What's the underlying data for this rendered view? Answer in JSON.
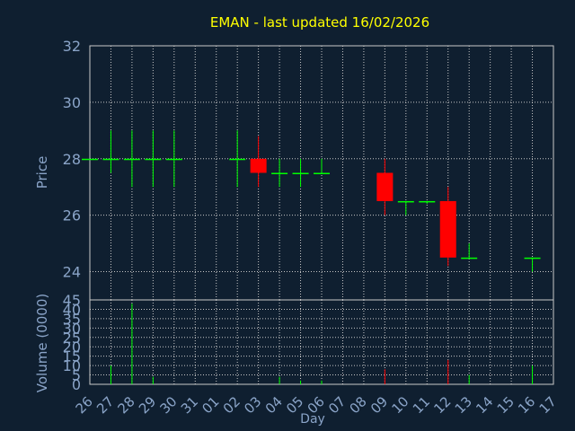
{
  "chart_data": [
    {
      "type": "candlestick",
      "title": "EMAN - last updated 16/02/2026",
      "ylabel": "Price",
      "ylim": [
        23,
        32
      ],
      "y_ticks": [
        "24",
        "26",
        "28",
        "30",
        "32"
      ],
      "grid": true,
      "colors": {
        "up": "#00ff00",
        "down": "#ff0000",
        "text": "#8aa4c8",
        "title": "#ffff00",
        "grid": "#c8c8c8"
      },
      "candles": [
        {
          "x": "26",
          "open": 28.0,
          "high": 28.0,
          "low": 28.0,
          "close": 28.0
        },
        {
          "x": "27",
          "open": 28.0,
          "high": 29.0,
          "low": 27.5,
          "close": 28.0
        },
        {
          "x": "28",
          "open": 28.0,
          "high": 29.0,
          "low": 27.0,
          "close": 28.0
        },
        {
          "x": "29",
          "open": 28.0,
          "high": 29.0,
          "low": 27.0,
          "close": 28.0
        },
        {
          "x": "30",
          "open": 28.0,
          "high": 29.0,
          "low": 27.0,
          "close": 28.0
        },
        {
          "x": "02",
          "open": 28.0,
          "high": 29.0,
          "low": 27.0,
          "close": 28.0
        },
        {
          "x": "03",
          "open": 28.0,
          "high": 28.8,
          "low": 27.0,
          "close": 27.5
        },
        {
          "x": "04",
          "open": 27.5,
          "high": 28.0,
          "low": 27.0,
          "close": 27.5
        },
        {
          "x": "05",
          "open": 27.5,
          "high": 28.0,
          "low": 27.0,
          "close": 27.5
        },
        {
          "x": "06",
          "open": 27.5,
          "high": 28.0,
          "low": 27.5,
          "close": 27.5
        },
        {
          "x": "09",
          "open": 27.5,
          "high": 28.0,
          "low": 26.0,
          "close": 26.5
        },
        {
          "x": "10",
          "open": 26.5,
          "high": 26.5,
          "low": 26.0,
          "close": 26.5
        },
        {
          "x": "11",
          "open": 26.5,
          "high": 26.5,
          "low": 26.4,
          "close": 26.5
        },
        {
          "x": "12",
          "open": 26.5,
          "high": 27.0,
          "low": 24.2,
          "close": 24.5
        },
        {
          "x": "13",
          "open": 24.5,
          "high": 25.0,
          "low": 24.5,
          "close": 24.5
        },
        {
          "x": "16",
          "open": 24.5,
          "high": 24.5,
          "low": 24.0,
          "close": 24.5
        }
      ]
    },
    {
      "type": "bar",
      "ylabel": "Volume (0000)",
      "xlabel": "Day",
      "ylim": [
        0,
        45
      ],
      "y_ticks": [
        "0",
        "5",
        "10",
        "15",
        "20",
        "25",
        "30",
        "35",
        "40",
        "45"
      ],
      "grid": true,
      "categories": [
        "26",
        "27",
        "28",
        "29",
        "30",
        "31",
        "01",
        "02",
        "03",
        "04",
        "05",
        "06",
        "07",
        "08",
        "09",
        "10",
        "11",
        "12",
        "13",
        "14",
        "15",
        "16",
        "17"
      ],
      "values": [
        0,
        10,
        43,
        4,
        0,
        0,
        0,
        0,
        0,
        4,
        2,
        2,
        0,
        0,
        8,
        0,
        0,
        13,
        5,
        0,
        0,
        10,
        0
      ],
      "bar_colors": [
        "#00ff00",
        "#00ff00",
        "#00ff00",
        "#00ff00",
        "#00ff00",
        "#00ff00",
        "#00ff00",
        "#00ff00",
        "#00ff00",
        "#00ff00",
        "#00ff00",
        "#00ff00",
        "#00ff00",
        "#00ff00",
        "#ff0000",
        "#00ff00",
        "#00ff00",
        "#ff0000",
        "#00ff00",
        "#00ff00",
        "#00ff00",
        "#00ff00",
        "#00ff00"
      ]
    }
  ]
}
